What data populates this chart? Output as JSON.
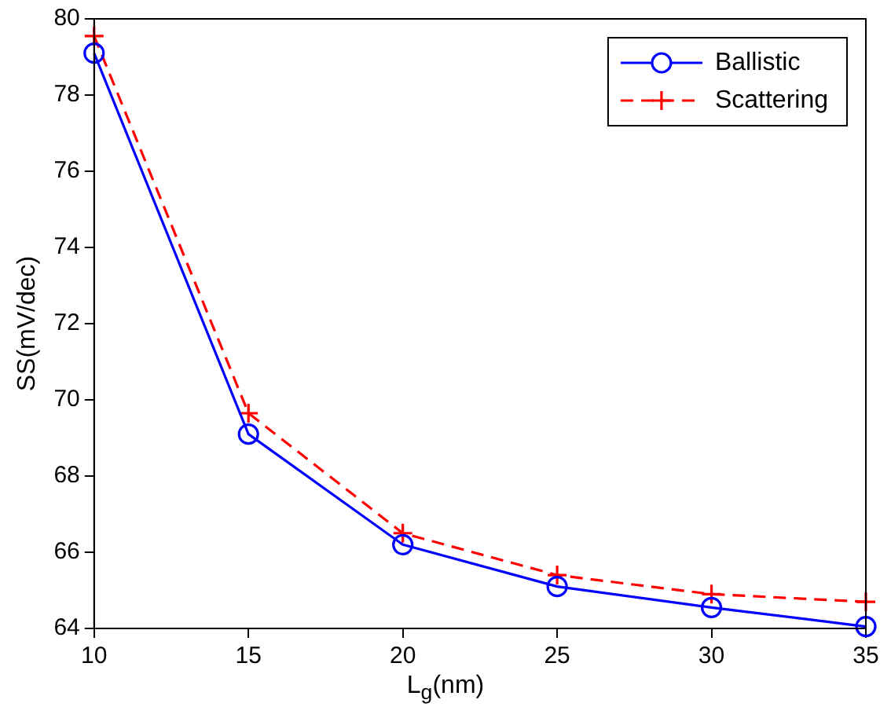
{
  "chart_data": {
    "type": "line",
    "xlabel": "L$_{g}$(nm)",
    "ylabel": "SS(mV/dec)",
    "x": [
      10,
      15,
      20,
      25,
      30,
      35
    ],
    "series": [
      {
        "name": "Ballistic",
        "color": "#0000ff",
        "values": [
          79.1,
          69.1,
          66.2,
          65.1,
          64.55,
          64.05
        ],
        "marker": "circle",
        "line_style": "solid"
      },
      {
        "name": "Scattering",
        "color": "#ff0000",
        "values": [
          79.55,
          69.65,
          66.5,
          65.4,
          64.9,
          64.7
        ],
        "marker": "cross",
        "line_style": "dashed"
      }
    ],
    "xlim": [
      10,
      35
    ],
    "xticks": [
      10,
      15,
      20,
      25,
      30,
      35
    ],
    "ylim": [
      64,
      80
    ],
    "yticks": [
      64,
      66,
      68,
      70,
      72,
      74,
      76,
      78,
      80
    ],
    "grid": false,
    "legend": "top right"
  }
}
